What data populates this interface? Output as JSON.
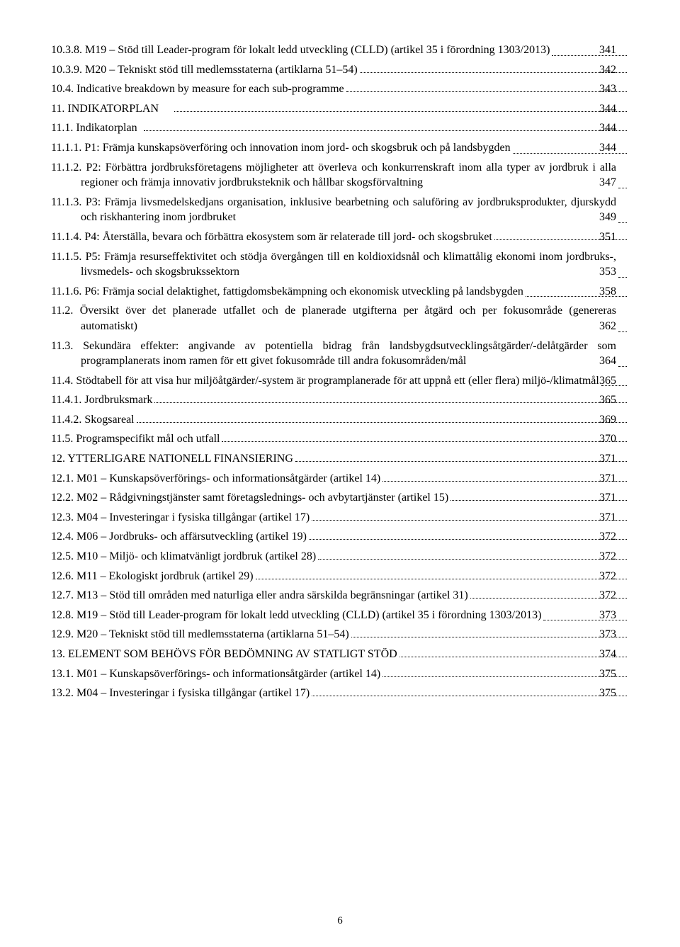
{
  "page_number": "6",
  "entries": [
    {
      "num": "10.3.8.",
      "label": "M19 – Stöd till Leader-program för lokalt ledd utveckling (CLLD) (artikel 35 i förordning 1303/2013)",
      "page": "341",
      "indent": "hang-1",
      "wrap": true
    },
    {
      "num": "10.3.9.",
      "label": "M20 – Tekniskt stöd till medlemsstaterna (artiklarna 51–54)",
      "page": "342",
      "indent": "hang-1"
    },
    {
      "num": "10.4.",
      "label": "Indicative breakdown by measure for each sub-programme",
      "page": "343",
      "indent": "hang-1"
    },
    {
      "num": "11.",
      "label": "INDIKATORPLAN",
      "page": "344",
      "indent": "hang-1"
    },
    {
      "num": "11.1.",
      "label": "Indikatorplan",
      "page": "344",
      "indent": "hang-1"
    },
    {
      "num": "11.1.1.",
      "label": "P1: Främja kunskapsöverföring och innovation inom jord- och skogsbruk och på landsbygden",
      "page": "344",
      "indent": "hang-1",
      "wrap": true
    },
    {
      "num": "11.1.2.",
      "label": "P2: Förbättra jordbruksföretagens möjligheter att överleva och konkurrenskraft inom alla typer av jordbruk i alla regioner och främja innovativ jordbruksteknik och hållbar skogsförvaltning",
      "page": "347",
      "indent": "hang-1",
      "wrap": true
    },
    {
      "num": "11.1.3.",
      "label": "P3: Främja livsmedelskedjans organisation, inklusive bearbetning och saluföring av jordbruksprodukter, djurskydd och riskhantering inom jordbruket",
      "page": "349",
      "indent": "hang-1",
      "wrap": true
    },
    {
      "num": "11.1.4.",
      "label": "P4: Återställa, bevara och förbättra ekosystem som är relaterade till jord- och skogsbruket",
      "page": "351",
      "indent": "hang-1"
    },
    {
      "num": "11.1.5.",
      "label": "P5: Främja resurseffektivitet och stödja övergången till en koldioxidsnål och klimattålig ekonomi inom jordbruks-, livsmedels- och skogsbrukssektorn",
      "page": "353",
      "indent": "hang-1",
      "wrap": true
    },
    {
      "num": "11.1.6.",
      "label": "P6: Främja social delaktighet, fattigdomsbekämpning och ekonomisk utveckling på landsbygden",
      "page": "358",
      "indent": "hang-1",
      "wrap": true
    },
    {
      "num": "11.2.",
      "label": "Översikt över det planerade utfallet och de planerade utgifterna per åtgärd och per fokusområde (genereras automatiskt)",
      "page": "362",
      "indent": "hang-1",
      "wrap": true
    },
    {
      "num": "11.3.",
      "label": "Sekundära effekter: angivande av potentiella bidrag från landsbygdsutvecklingsåtgärder/-delåtgärder som programplanerats inom ramen för ett givet fokusområde till andra fokusområden/mål",
      "page": "364",
      "indent": "hang-1",
      "wrap": true
    },
    {
      "num": "11.4.",
      "label": "Stödtabell för att visa hur miljöåtgärder/-system är programplanerade för att uppnå ett (eller flera) miljö-/klimatmål",
      "page": "365",
      "indent": "hang-1",
      "wrap": true
    },
    {
      "num": "11.4.1.",
      "label": "Jordbruksmark",
      "page": "365",
      "indent": "hang-1"
    },
    {
      "num": "11.4.2.",
      "label": "Skogsareal",
      "page": "369",
      "indent": "hang-1"
    },
    {
      "num": "11.5.",
      "label": "Programspecifikt mål och utfall",
      "page": "370",
      "indent": "hang-1"
    },
    {
      "num": "12.",
      "label": "YTTERLIGARE NATIONELL FINANSIERING",
      "page": "371",
      "indent": "hang-1"
    },
    {
      "num": "12.1.",
      "label": "M01 – Kunskapsöverförings- och informationsåtgärder (artikel 14)",
      "page": "371",
      "indent": "hang-1"
    },
    {
      "num": "12.2.",
      "label": "M02 – Rådgivningstjänster samt företagslednings- och avbytartjänster (artikel 15)",
      "page": "371",
      "indent": "hang-1"
    },
    {
      "num": "12.3.",
      "label": "M04 – Investeringar i fysiska tillgångar (artikel 17)",
      "page": "371",
      "indent": "hang-1"
    },
    {
      "num": "12.4.",
      "label": "M06 – Jordbruks- och affärsutveckling (artikel 19)",
      "page": "372",
      "indent": "hang-1"
    },
    {
      "num": "12.5.",
      "label": "M10 – Miljö- och klimatvänligt jordbruk (artikel 28)",
      "page": "372",
      "indent": "hang-1"
    },
    {
      "num": "12.6.",
      "label": "M11 – Ekologiskt jordbruk (artikel 29)",
      "page": "372",
      "indent": "hang-1"
    },
    {
      "num": "12.7.",
      "label": "M13 – Stöd till områden med naturliga eller andra särskilda begränsningar (artikel 31)",
      "page": "372",
      "indent": "hang-1"
    },
    {
      "num": "12.8.",
      "label": "M19 – Stöd till Leader-program för lokalt ledd utveckling (CLLD) (artikel 35 i förordning 1303/2013)",
      "page": "373",
      "indent": "hang-1",
      "wrap": true
    },
    {
      "num": "12.9.",
      "label": "M20 – Tekniskt stöd till medlemsstaterna (artiklarna 51–54)",
      "page": "373",
      "indent": "hang-1"
    },
    {
      "num": "13.",
      "label": "ELEMENT SOM BEHÖVS FÖR BEDÖMNING AV STATLIGT STÖD",
      "page": "374",
      "indent": "hang-1"
    },
    {
      "num": "13.1.",
      "label": "M01 – Kunskapsöverförings- och informationsåtgärder (artikel 14)",
      "page": "375",
      "indent": "hang-1"
    },
    {
      "num": "13.2.",
      "label": "M04 – Investeringar i fysiska tillgångar (artikel 17)",
      "page": "375",
      "indent": "hang-1"
    }
  ]
}
